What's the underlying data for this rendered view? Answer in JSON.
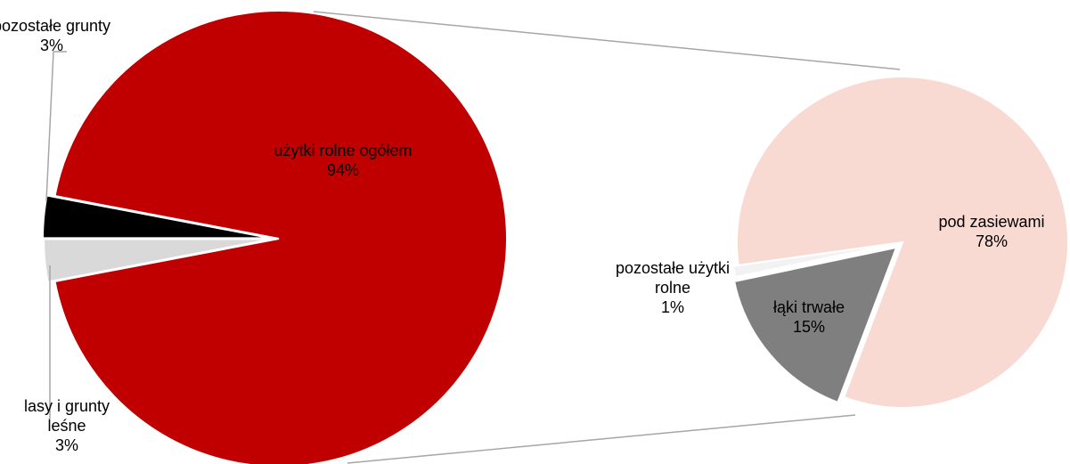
{
  "chart_data": [
    {
      "type": "pie",
      "categories": [
        "użytki rolne ogółem",
        "pozostałe grunty",
        "lasy i grunty leśne"
      ],
      "values": [
        94,
        3,
        3
      ],
      "value_labels": [
        "94%",
        "3%",
        "3%"
      ],
      "colors": [
        "#c00000",
        "#000000",
        "#d9d9d9"
      ]
    },
    {
      "type": "pie",
      "categories": [
        "pod zasiewami",
        "łąki trwałe",
        "pozostałe użytki rolne"
      ],
      "values": [
        78,
        15,
        1
      ],
      "value_labels": [
        "78%",
        "15%",
        "1%"
      ],
      "colors": [
        "#f8dad3",
        "#7f7f7f",
        "#f2f2f2"
      ]
    }
  ]
}
